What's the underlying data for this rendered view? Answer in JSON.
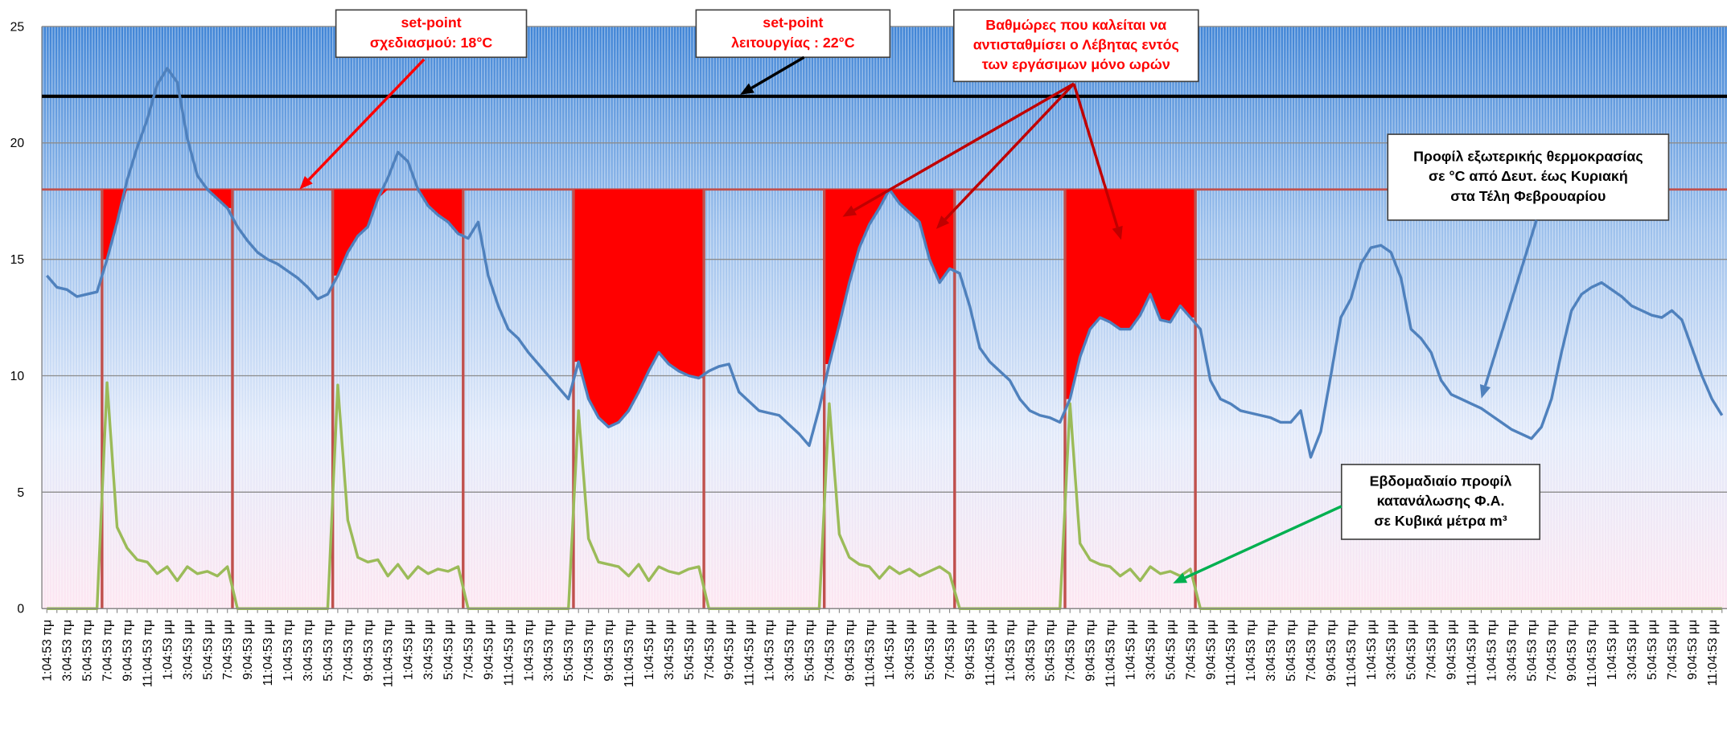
{
  "chart_data": {
    "type": "line",
    "categories": [
      "1:04:53 πμ",
      null,
      "3:04:53 πμ",
      null,
      "5:04:53 πμ",
      null,
      "7:04:53 πμ",
      null,
      "9:04:53 πμ",
      null,
      "11:04:53 πμ",
      null,
      "1:04:53 μμ",
      null,
      "3:04:53 μμ",
      null,
      "5:04:53 μμ",
      null,
      "7:04:53 μμ",
      null,
      "9:04:53 μμ",
      null,
      "11:04:53 μμ",
      null,
      "1:04:53 πμ",
      null,
      "3:04:53 πμ",
      null,
      "5:04:53 πμ",
      null,
      "7:04:53 πμ",
      null,
      "9:04:53 πμ",
      null,
      "11:04:53 πμ",
      null,
      "1:04:53 μμ",
      null,
      "3:04:53 μμ",
      null,
      "5:04:53 μμ",
      null,
      "7:04:53 μμ",
      null,
      "9:04:53 μμ",
      null,
      "11:04:53 μμ",
      null,
      "1:04:53 πμ",
      null,
      "3:04:53 πμ",
      null,
      "5:04:53 πμ",
      null,
      "7:04:53 πμ",
      null,
      "9:04:53 πμ",
      null,
      "11:04:53 πμ",
      null,
      "1:04:53 μμ",
      null,
      "3:04:53 μμ",
      null,
      "5:04:53 μμ",
      null,
      "7:04:53 μμ",
      null,
      "9:04:53 μμ",
      null,
      "11:04:53 μμ",
      null,
      "1:04:53 πμ",
      null,
      "3:04:53 πμ",
      null,
      "5:04:53 πμ",
      null,
      "7:04:53 πμ",
      null,
      "9:04:53 πμ",
      null,
      "11:04:53 πμ",
      null,
      "1:04:53 μμ",
      null,
      "3:04:53 μμ",
      null,
      "5:04:53 μμ",
      null,
      "7:04:53 μμ",
      null,
      "9:04:53 μμ",
      null,
      "11:04:53 μμ",
      null,
      "1:04:53 πμ",
      null,
      "3:04:53 πμ",
      null,
      "5:04:53 πμ",
      null,
      "7:04:53 πμ",
      null,
      "9:04:53 πμ",
      null,
      "11:04:53 πμ",
      null,
      "1:04:53 μμ",
      null,
      "3:04:53 μμ",
      null,
      "5:04:53 μμ",
      null,
      "7:04:53 μμ",
      null,
      "9:04:53 μμ",
      null,
      "11:04:53 μμ",
      null,
      "1:04:53 πμ",
      null,
      "3:04:53 πμ",
      null,
      "5:04:53 πμ",
      null,
      "7:04:53 πμ",
      null,
      "9:04:53 πμ",
      null,
      "11:04:53 πμ",
      null,
      "1:04:53 μμ",
      null,
      "3:04:53 μμ",
      null,
      "5:04:53 μμ",
      null,
      "7:04:53 μμ",
      null,
      "9:04:53 μμ",
      null,
      "11:04:53 μμ",
      null,
      "1:04:53 πμ",
      null,
      "3:04:53 πμ",
      null,
      "5:04:53 πμ",
      null,
      "7:04:53 πμ",
      null,
      "9:04:53 πμ",
      null,
      "11:04:53 πμ",
      null,
      "1:04:53 μμ",
      null,
      "3:04:53 μμ",
      null,
      "5:04:53 μμ",
      null,
      "7:04:53 μμ",
      null,
      "9:04:53 μμ",
      null,
      "11:04:53 μμ",
      null
    ],
    "series": [
      {
        "color": "#4f81bd",
        "values": [
          14.3,
          13.8,
          13.7,
          13.4,
          13.5,
          13.6,
          15.0,
          16.6,
          18.4,
          19.8,
          21.0,
          22.5,
          23.2,
          22.6,
          20.2,
          18.6,
          18.0,
          17.6,
          17.2,
          16.4,
          15.8,
          15.3,
          15.0,
          14.8,
          14.5,
          14.2,
          13.8,
          13.3,
          13.5,
          14.3,
          15.3,
          16.0,
          16.4,
          17.6,
          18.5,
          19.6,
          19.2,
          18.0,
          17.3,
          16.9,
          16.6,
          16.1,
          15.9,
          16.6,
          14.3,
          13.0,
          12.0,
          11.6,
          11.0,
          10.5,
          10.0,
          9.5,
          9.0,
          10.6,
          9.0,
          8.2,
          7.8,
          8.0,
          8.5,
          9.3,
          10.2,
          11.0,
          10.5,
          10.2,
          10.0,
          9.9,
          10.2,
          10.4,
          10.5,
          9.3,
          8.9,
          8.5,
          8.4,
          8.3,
          7.9,
          7.5,
          7.0,
          8.6,
          10.5,
          12.2,
          14.0,
          15.5,
          16.5,
          17.2,
          18.0,
          17.4,
          17.0,
          16.6,
          15.0,
          14.0,
          14.6,
          14.4,
          13.0,
          11.2,
          10.6,
          10.2,
          9.8,
          9.0,
          8.5,
          8.3,
          8.2,
          8.0,
          9.0,
          10.8,
          12.0,
          12.5,
          12.3,
          12.0,
          12.0,
          12.6,
          13.5,
          12.4,
          12.3,
          13.0,
          12.5,
          12.0,
          9.8,
          9.0,
          8.8,
          8.5,
          8.4,
          8.3,
          8.2,
          8.0,
          8.0,
          8.5,
          6.5,
          7.6,
          10.0,
          12.5,
          13.3,
          14.8,
          15.5,
          15.6,
          15.3,
          14.2,
          12.0,
          11.6,
          11.0,
          9.8,
          9.2,
          9.0,
          8.8,
          8.6,
          8.3,
          8.0,
          7.7,
          7.5,
          7.3,
          7.8,
          9.0,
          11.0,
          12.8,
          13.5,
          13.8,
          14.0,
          13.7,
          13.4,
          13.0,
          12.8,
          12.6,
          12.5,
          12.8,
          12.4,
          11.2,
          10.0,
          9.0,
          8.3
        ]
      },
      {
        "color": "#9bbb59",
        "values": [
          0,
          0,
          0,
          0,
          0,
          0,
          9.7,
          3.5,
          2.6,
          2.1,
          2.0,
          1.5,
          1.8,
          1.2,
          1.8,
          1.5,
          1.6,
          1.4,
          1.8,
          0,
          0,
          0,
          0,
          0,
          0,
          0,
          0,
          0,
          0,
          9.6,
          3.8,
          2.2,
          2.0,
          2.1,
          1.4,
          1.9,
          1.3,
          1.8,
          1.5,
          1.7,
          1.6,
          1.8,
          0,
          0,
          0,
          0,
          0,
          0,
          0,
          0,
          0,
          0,
          0,
          8.5,
          3.0,
          2.0,
          1.9,
          1.8,
          1.4,
          1.9,
          1.2,
          1.8,
          1.6,
          1.5,
          1.7,
          1.8,
          0,
          0,
          0,
          0,
          0,
          0,
          0,
          0,
          0,
          0,
          0,
          0,
          8.8,
          3.2,
          2.2,
          1.9,
          1.8,
          1.3,
          1.8,
          1.5,
          1.7,
          1.4,
          1.6,
          1.8,
          1.5,
          0,
          0,
          0,
          0,
          0,
          0,
          0,
          0,
          0,
          0,
          0,
          8.8,
          2.8,
          2.1,
          1.9,
          1.8,
          1.4,
          1.7,
          1.2,
          1.8,
          1.5,
          1.6,
          1.4,
          1.7,
          0,
          0,
          0,
          0,
          0,
          0,
          0,
          0,
          0,
          0,
          0,
          0,
          0,
          0,
          0,
          0,
          0,
          0,
          0,
          0,
          0,
          0,
          0,
          0,
          0,
          0,
          0,
          0,
          0,
          0,
          0,
          0,
          0,
          0,
          0,
          0,
          0,
          0,
          0,
          0,
          0,
          0,
          0,
          0,
          0,
          0,
          0,
          0,
          0,
          0,
          0,
          0,
          0
        ]
      }
    ],
    "reference_lines": [
      {
        "value": 18,
        "color": "#c0504d"
      },
      {
        "value": 22,
        "color": "#000000"
      }
    ],
    "deficit_color": "#ff0000",
    "ylim": [
      0,
      25
    ],
    "yticks": [
      0,
      5,
      10,
      15,
      20,
      25
    ],
    "grid": true,
    "annotations": [
      {
        "lines": [
          "set-point",
          "σχεδιασμού:  18°C"
        ],
        "color": "#ff0000"
      },
      {
        "lines": [
          "set-point",
          "λειτουργίας :  22°C"
        ],
        "color": "#ff0000"
      },
      {
        "lines": [
          "Βαθμώρες που καλείται να",
          "αντισταθμίσει ο Λέβητας εντός",
          "των εργάσιμων μόνο ωρών"
        ],
        "color": "#ff0000"
      },
      {
        "lines": [
          "Προφίλ εξωτερικής θερμοκρασίας",
          "σε °C  από Δευτ. έως Κυριακή",
          "στα Τέλη Φεβρουαρίου"
        ],
        "color": "#000000"
      },
      {
        "lines": [
          "Εβδομαδιαίο προφίλ",
          "κατανάλωσης Φ.Α.",
          "σε Κυβικά μέτρα m³"
        ],
        "color": "#000000"
      }
    ]
  }
}
